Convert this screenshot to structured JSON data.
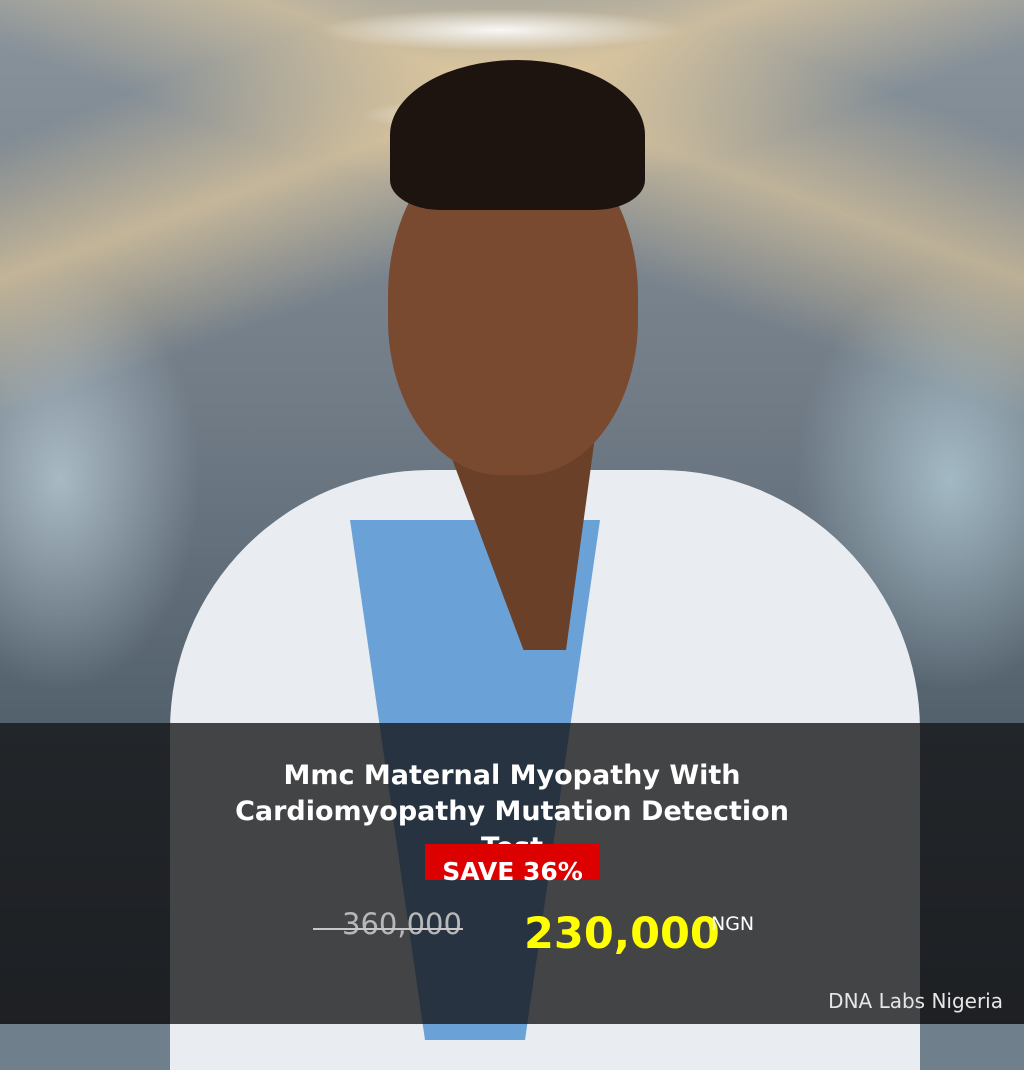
{
  "product": {
    "title_lines": [
      "Mmc Maternal Myopathy With",
      "Cardiomyopathy Mutation Detection",
      "Test"
    ],
    "badge": "SAVE 36%",
    "original_price": "360,000",
    "sale_price": "230,000",
    "currency": "NGN"
  },
  "brand": "DNA Labs Nigeria",
  "colors": {
    "badge": "#dd0000",
    "sale_price": "#ffff00"
  }
}
